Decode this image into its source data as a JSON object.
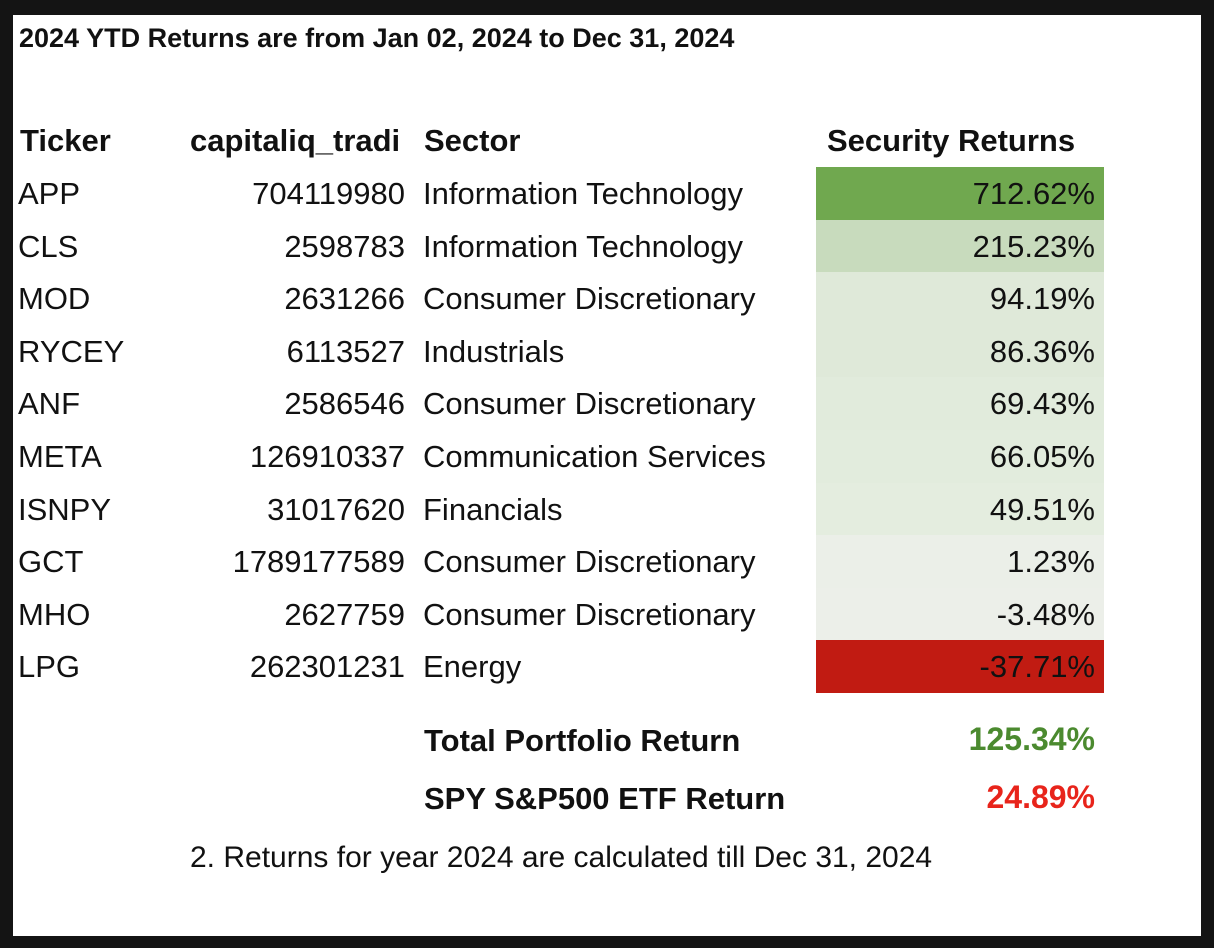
{
  "title": "2024 YTD Returns are from Jan 02, 2024 to Dec 31, 2024",
  "headers": {
    "ticker": "Ticker",
    "id": "capitaliq_tradi",
    "sector": "Sector",
    "returns": "Security Returns"
  },
  "rows": [
    {
      "ticker": "APP",
      "id": "704119980",
      "sector": "Information Technology",
      "return": "712.62%",
      "return_value": 712.62,
      "bg": "#70a84f"
    },
    {
      "ticker": "CLS",
      "id": "2598783",
      "sector": "Information Technology",
      "return": "215.23%",
      "return_value": 215.23,
      "bg": "#c8dbbd"
    },
    {
      "ticker": "MOD",
      "id": "2631266",
      "sector": "Consumer Discretionary",
      "return": "94.19%",
      "return_value": 94.19,
      "bg": "#dfe9d9"
    },
    {
      "ticker": "RYCEY",
      "id": "6113527",
      "sector": "Industrials",
      "return": "86.36%",
      "return_value": 86.36,
      "bg": "#dfe9d9"
    },
    {
      "ticker": "ANF",
      "id": "2586546",
      "sector": "Consumer Discretionary",
      "return": "69.43%",
      "return_value": 69.43,
      "bg": "#e1ebdc"
    },
    {
      "ticker": "META",
      "id": "126910337",
      "sector": "Communication Services",
      "return": "66.05%",
      "return_value": 66.05,
      "bg": "#e2ecdd"
    },
    {
      "ticker": "ISNPY",
      "id": "31017620",
      "sector": "Financials",
      "return": "49.51%",
      "return_value": 49.51,
      "bg": "#e4eddf"
    },
    {
      "ticker": "GCT",
      "id": "1789177589",
      "sector": "Consumer Discretionary",
      "return": "1.23%",
      "return_value": 1.23,
      "bg": "#ebefe8"
    },
    {
      "ticker": "MHO",
      "id": "2627759",
      "sector": "Consumer Discretionary",
      "return": "-3.48%",
      "return_value": -3.48,
      "bg": "#ecefe9"
    },
    {
      "ticker": "LPG",
      "id": "262301231",
      "sector": "Energy",
      "return": "-37.71%",
      "return_value": -37.71,
      "bg": "#c11b12"
    }
  ],
  "summary": {
    "portfolio_label": "Total Portfolio Return",
    "portfolio_value": "125.34%",
    "portfolio_color": "#4b8a2f",
    "spy_label": "SPY S&P500 ETF Return",
    "spy_value": "24.89%",
    "spy_color": "#e8241b"
  },
  "footnote": "2. Returns for year 2024 are calculated till Dec 31, 2024"
}
